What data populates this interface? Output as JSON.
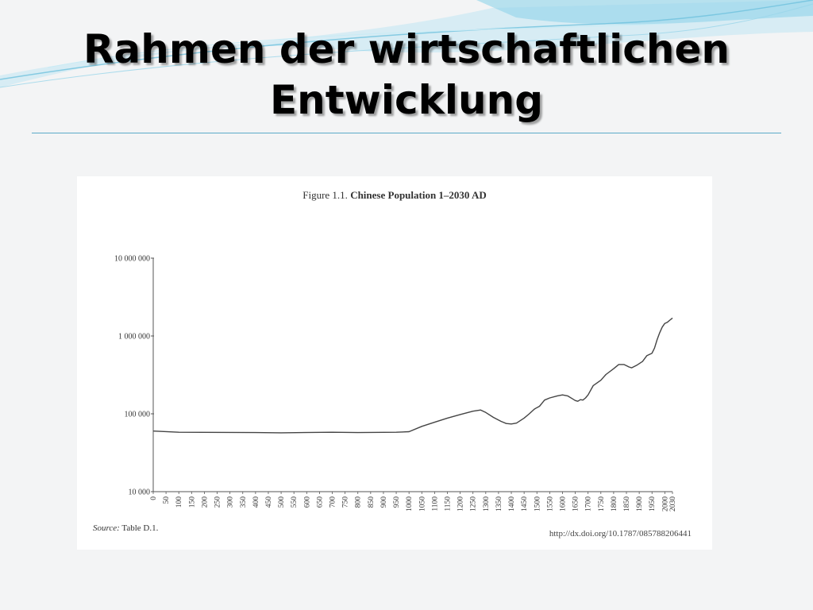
{
  "slide": {
    "title_line1": "Rahmen der wirtschaftlichen",
    "title_line2": "Entwicklung"
  },
  "figure": {
    "caption_prefix": "Figure 1.1.",
    "caption_title": "Chinese Population 1–2030 AD",
    "source_label": "Source:",
    "source_text": "Table D.1.",
    "doi": "http://dx.doi.org/10.1787/085788206441"
  },
  "chart_data": {
    "type": "line",
    "title": "Chinese Population 1–2030 AD",
    "xlabel": "",
    "ylabel": "",
    "yscale": "log",
    "ylim": [
      10000,
      10000000
    ],
    "xlim": [
      0,
      2030
    ],
    "grid": false,
    "ytick_values": [
      10000,
      100000,
      1000000,
      10000000
    ],
    "ytick_labels": [
      "10 000",
      "100 000",
      "1 000 000",
      "10 000 000"
    ],
    "xtick_labels": [
      "0",
      "50",
      "100",
      "150",
      "200",
      "250",
      "300",
      "350",
      "400",
      "450",
      "500",
      "550",
      "600",
      "650",
      "700",
      "750",
      "800",
      "850",
      "900",
      "950",
      "1000",
      "1050",
      "1100",
      "1150",
      "1200",
      "1250",
      "1300",
      "1350",
      "1400",
      "1450",
      "1500",
      "1550",
      "1600",
      "1650",
      "1700",
      "1750",
      "1800",
      "1850",
      "1900",
      "1950",
      "2000",
      "2030"
    ],
    "series": [
      {
        "x": [
          1,
          100,
          400,
          500,
          700,
          800,
          950,
          1000,
          1050,
          1100,
          1150,
          1200,
          1250,
          1280,
          1300,
          1330,
          1360,
          1380,
          1400,
          1420,
          1450,
          1470,
          1490,
          1500,
          1510,
          1530,
          1550,
          1580,
          1600,
          1620,
          1640,
          1650,
          1660,
          1670,
          1680,
          1690,
          1700,
          1720,
          1750,
          1770,
          1800,
          1820,
          1840,
          1850,
          1860,
          1870,
          1890,
          1913,
          1930,
          1950,
          1960,
          1970,
          1980,
          1990,
          2000,
          2010,
          2020,
          2030
        ],
        "y": [
          60000,
          58000,
          57500,
          57000,
          58000,
          57500,
          58000,
          59000,
          69000,
          78000,
          88000,
          98000,
          108000,
          112000,
          104000,
          90000,
          80000,
          75000,
          74000,
          76000,
          88000,
          100000,
          115000,
          120000,
          125000,
          150000,
          160000,
          170000,
          175000,
          170000,
          155000,
          148000,
          145000,
          152000,
          150000,
          160000,
          175000,
          230000,
          270000,
          320000,
          380000,
          430000,
          430000,
          415000,
          400000,
          390000,
          420000,
          470000,
          560000,
          600000,
          700000,
          900000,
          1100000,
          1300000,
          1450000,
          1500000,
          1600000,
          1700000
        ]
      }
    ]
  }
}
